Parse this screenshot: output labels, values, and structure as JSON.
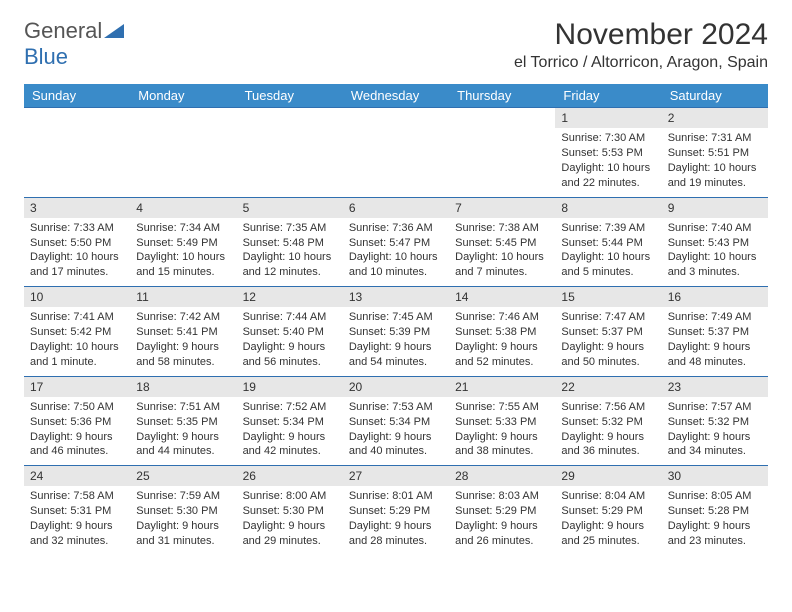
{
  "logo": {
    "text1": "General",
    "text2": "Blue"
  },
  "title": "November 2024",
  "location": "el Torrico / Altorricon, Aragon, Spain",
  "colors": {
    "header_bg": "#3a8bc9",
    "header_text": "#ffffff",
    "daynum_bg": "#e7e7e7",
    "border": "#2f6fb0",
    "logo_accent": "#2f6fb0",
    "body_text": "#333333"
  },
  "weekdays": [
    "Sunday",
    "Monday",
    "Tuesday",
    "Wednesday",
    "Thursday",
    "Friday",
    "Saturday"
  ],
  "weeks": [
    [
      {
        "empty": true
      },
      {
        "empty": true
      },
      {
        "empty": true
      },
      {
        "empty": true
      },
      {
        "empty": true
      },
      {
        "day": "1",
        "sunrise": "Sunrise: 7:30 AM",
        "sunset": "Sunset: 5:53 PM",
        "daylight": "Daylight: 10 hours and 22 minutes."
      },
      {
        "day": "2",
        "sunrise": "Sunrise: 7:31 AM",
        "sunset": "Sunset: 5:51 PM",
        "daylight": "Daylight: 10 hours and 19 minutes."
      }
    ],
    [
      {
        "day": "3",
        "sunrise": "Sunrise: 7:33 AM",
        "sunset": "Sunset: 5:50 PM",
        "daylight": "Daylight: 10 hours and 17 minutes."
      },
      {
        "day": "4",
        "sunrise": "Sunrise: 7:34 AM",
        "sunset": "Sunset: 5:49 PM",
        "daylight": "Daylight: 10 hours and 15 minutes."
      },
      {
        "day": "5",
        "sunrise": "Sunrise: 7:35 AM",
        "sunset": "Sunset: 5:48 PM",
        "daylight": "Daylight: 10 hours and 12 minutes."
      },
      {
        "day": "6",
        "sunrise": "Sunrise: 7:36 AM",
        "sunset": "Sunset: 5:47 PM",
        "daylight": "Daylight: 10 hours and 10 minutes."
      },
      {
        "day": "7",
        "sunrise": "Sunrise: 7:38 AM",
        "sunset": "Sunset: 5:45 PM",
        "daylight": "Daylight: 10 hours and 7 minutes."
      },
      {
        "day": "8",
        "sunrise": "Sunrise: 7:39 AM",
        "sunset": "Sunset: 5:44 PM",
        "daylight": "Daylight: 10 hours and 5 minutes."
      },
      {
        "day": "9",
        "sunrise": "Sunrise: 7:40 AM",
        "sunset": "Sunset: 5:43 PM",
        "daylight": "Daylight: 10 hours and 3 minutes."
      }
    ],
    [
      {
        "day": "10",
        "sunrise": "Sunrise: 7:41 AM",
        "sunset": "Sunset: 5:42 PM",
        "daylight": "Daylight: 10 hours and 1 minute."
      },
      {
        "day": "11",
        "sunrise": "Sunrise: 7:42 AM",
        "sunset": "Sunset: 5:41 PM",
        "daylight": "Daylight: 9 hours and 58 minutes."
      },
      {
        "day": "12",
        "sunrise": "Sunrise: 7:44 AM",
        "sunset": "Sunset: 5:40 PM",
        "daylight": "Daylight: 9 hours and 56 minutes."
      },
      {
        "day": "13",
        "sunrise": "Sunrise: 7:45 AM",
        "sunset": "Sunset: 5:39 PM",
        "daylight": "Daylight: 9 hours and 54 minutes."
      },
      {
        "day": "14",
        "sunrise": "Sunrise: 7:46 AM",
        "sunset": "Sunset: 5:38 PM",
        "daylight": "Daylight: 9 hours and 52 minutes."
      },
      {
        "day": "15",
        "sunrise": "Sunrise: 7:47 AM",
        "sunset": "Sunset: 5:37 PM",
        "daylight": "Daylight: 9 hours and 50 minutes."
      },
      {
        "day": "16",
        "sunrise": "Sunrise: 7:49 AM",
        "sunset": "Sunset: 5:37 PM",
        "daylight": "Daylight: 9 hours and 48 minutes."
      }
    ],
    [
      {
        "day": "17",
        "sunrise": "Sunrise: 7:50 AM",
        "sunset": "Sunset: 5:36 PM",
        "daylight": "Daylight: 9 hours and 46 minutes."
      },
      {
        "day": "18",
        "sunrise": "Sunrise: 7:51 AM",
        "sunset": "Sunset: 5:35 PM",
        "daylight": "Daylight: 9 hours and 44 minutes."
      },
      {
        "day": "19",
        "sunrise": "Sunrise: 7:52 AM",
        "sunset": "Sunset: 5:34 PM",
        "daylight": "Daylight: 9 hours and 42 minutes."
      },
      {
        "day": "20",
        "sunrise": "Sunrise: 7:53 AM",
        "sunset": "Sunset: 5:34 PM",
        "daylight": "Daylight: 9 hours and 40 minutes."
      },
      {
        "day": "21",
        "sunrise": "Sunrise: 7:55 AM",
        "sunset": "Sunset: 5:33 PM",
        "daylight": "Daylight: 9 hours and 38 minutes."
      },
      {
        "day": "22",
        "sunrise": "Sunrise: 7:56 AM",
        "sunset": "Sunset: 5:32 PM",
        "daylight": "Daylight: 9 hours and 36 minutes."
      },
      {
        "day": "23",
        "sunrise": "Sunrise: 7:57 AM",
        "sunset": "Sunset: 5:32 PM",
        "daylight": "Daylight: 9 hours and 34 minutes."
      }
    ],
    [
      {
        "day": "24",
        "sunrise": "Sunrise: 7:58 AM",
        "sunset": "Sunset: 5:31 PM",
        "daylight": "Daylight: 9 hours and 32 minutes."
      },
      {
        "day": "25",
        "sunrise": "Sunrise: 7:59 AM",
        "sunset": "Sunset: 5:30 PM",
        "daylight": "Daylight: 9 hours and 31 minutes."
      },
      {
        "day": "26",
        "sunrise": "Sunrise: 8:00 AM",
        "sunset": "Sunset: 5:30 PM",
        "daylight": "Daylight: 9 hours and 29 minutes."
      },
      {
        "day": "27",
        "sunrise": "Sunrise: 8:01 AM",
        "sunset": "Sunset: 5:29 PM",
        "daylight": "Daylight: 9 hours and 28 minutes."
      },
      {
        "day": "28",
        "sunrise": "Sunrise: 8:03 AM",
        "sunset": "Sunset: 5:29 PM",
        "daylight": "Daylight: 9 hours and 26 minutes."
      },
      {
        "day": "29",
        "sunrise": "Sunrise: 8:04 AM",
        "sunset": "Sunset: 5:29 PM",
        "daylight": "Daylight: 9 hours and 25 minutes."
      },
      {
        "day": "30",
        "sunrise": "Sunrise: 8:05 AM",
        "sunset": "Sunset: 5:28 PM",
        "daylight": "Daylight: 9 hours and 23 minutes."
      }
    ]
  ]
}
